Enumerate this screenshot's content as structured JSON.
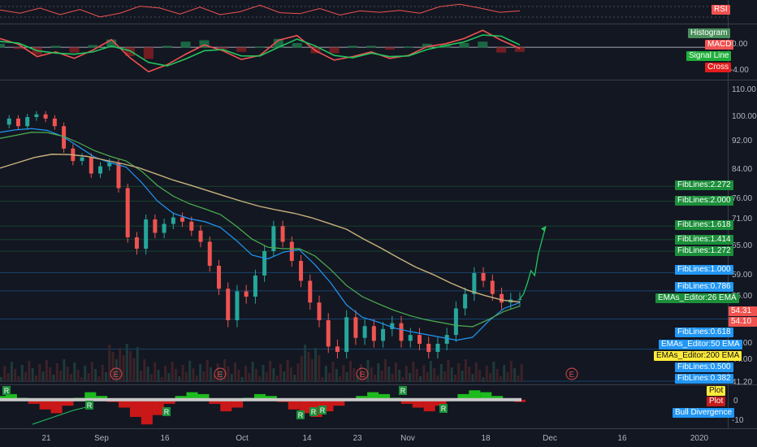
{
  "colors": {
    "background": "#131722",
    "up": "#26a69a",
    "down": "#ef5350",
    "ema26": "#2196f3",
    "ema50": "#4caf50",
    "ema200": "#c9b27c",
    "fib_blue": "#2196f3",
    "fib_green": "#1b8f3a",
    "rsi": "#ef5350",
    "macd": "#ef5350",
    "signal": "#22c55e",
    "projection": "#22c55e"
  },
  "x_axis": {
    "labels": [
      "21",
      "Sep",
      "16",
      "Oct",
      "14",
      "23",
      "Nov",
      "18",
      "Dec",
      "16",
      "2020"
    ]
  },
  "chart_data": [
    {
      "type": "line",
      "panel": "rsi",
      "series": [
        {
          "name": "RSI",
          "values": [
            54,
            47,
            58,
            44,
            55,
            39,
            47,
            62,
            58,
            45,
            60,
            44,
            50,
            64,
            48,
            46,
            57,
            43,
            52,
            49,
            53,
            47,
            61,
            66,
            58,
            49,
            52
          ]
        }
      ],
      "legend": [
        "RSI"
      ]
    },
    {
      "type": "line",
      "panel": "macd",
      "y_ticks": [
        "0.00",
        "-4.00"
      ],
      "ylim": [
        -5.0,
        3.5
      ],
      "series": [
        {
          "name": "MACD",
          "values": [
            1.5,
            0.5,
            -1.6,
            -0.8,
            -1.9,
            -0.5,
            1.3,
            -1.8,
            -4.2,
            -3.0,
            -1.2,
            0.4,
            -0.6,
            -2.1,
            -1.4,
            1.2,
            2.0,
            -0.6,
            -2.2,
            -1.6,
            -0.8,
            -1.9,
            -1.4,
            0.1,
            0.6,
            1.5,
            2.9,
            1.2,
            -0.2
          ]
        },
        {
          "name": "Signal Line",
          "values": [
            1.0,
            0.7,
            -0.6,
            -1.0,
            -1.2,
            -0.8,
            0.2,
            -0.6,
            -2.6,
            -3.2,
            -2.0,
            -0.6,
            -0.4,
            -1.5,
            -1.5,
            0.0,
            1.4,
            0.2,
            -1.4,
            -1.8,
            -1.0,
            -1.6,
            -1.5,
            -0.4,
            0.3,
            0.9,
            2.1,
            1.9,
            0.4
          ]
        }
      ],
      "legend": [
        "Histogram",
        "MACD",
        "Signal Line",
        "Cross"
      ]
    },
    {
      "type": "line",
      "panel": "price",
      "y_ticks": [
        "110.00",
        "100.00",
        "92.00",
        "84.00",
        "76.00",
        "71.00",
        "65.00",
        "59.00",
        "55.00",
        "47.00",
        "44.00",
        "41.20"
      ],
      "series": [
        {
          "name": "Price",
          "values": [
            97.5,
            99.5,
            97.0,
            100.0,
            101.0,
            99.5,
            97.0,
            90.0,
            86.5,
            87.5,
            83.0,
            85.0,
            86.0,
            79.0,
            67.0,
            64.5,
            71.0,
            68.0,
            70.0,
            71.5,
            70.5,
            68.5,
            66.0,
            61.0,
            56.5,
            51.0,
            56.0,
            55.0,
            59.0,
            64.0,
            69.5,
            66.0,
            62.0,
            58.0,
            54.0,
            51.0,
            46.5,
            45.5,
            51.5,
            48.0,
            50.0,
            47.5,
            49.5,
            50.5,
            47.5,
            48.5,
            47.0,
            45.5,
            47.0,
            48.5,
            53.0,
            55.5,
            59.5,
            58.0,
            55.5,
            54.0,
            54.5,
            54.6
          ]
        },
        {
          "name": "EMAs_Editor:26 EMA",
          "values": [
            95,
            95.8,
            96.2,
            95.6,
            93.6,
            90.5,
            87.6,
            86,
            84.8,
            80.5,
            75.5,
            72.5,
            71.2,
            70.5,
            69.2,
            66.3,
            63.2,
            62.4,
            63.8,
            64.3,
            61.2,
            57.6,
            53.6,
            51.5,
            50.7,
            49.7,
            49.1,
            48.6,
            48.1,
            47.6,
            48.1,
            50.8,
            53,
            54
          ]
        },
        {
          "name": "EMAs_Editor:50 EMA",
          "values": [
            93,
            94,
            95,
            94.9,
            93.7,
            91.6,
            89.4,
            87.8,
            86.5,
            83.6,
            79.7,
            76.8,
            74.9,
            73.6,
            72.2,
            69.5,
            66.6,
            64.8,
            64.5,
            64.5,
            63,
            60.2,
            57.1,
            55,
            53.8,
            52.7,
            51.8,
            51.1,
            50.6,
            50.1,
            49.9,
            51.1,
            52.5,
            53.4
          ]
        },
        {
          "name": "EMAs_Editor:200 EMA",
          "values": [
            84.5,
            86,
            87.5,
            88.4,
            88.3,
            87.8,
            86.8,
            85.8,
            84.6,
            82.9,
            81.2,
            79.8,
            78.3,
            76.8,
            75.4,
            74.2,
            73.3,
            72.5,
            71.4,
            70.1,
            68.8,
            66.6,
            64.6,
            62.6,
            60.7,
            59.2,
            57.6,
            56.2,
            55.2,
            54.4,
            54.1
          ]
        }
      ],
      "projection": {
        "values": [
          54.6,
          55.5,
          57.5,
          60.0,
          59.0,
          63.5,
          66.5,
          69.5
        ]
      },
      "price_labels": [
        "54.31",
        "54.10"
      ],
      "fib_lines": [
        {
          "label": "FibLines:2.272",
          "value": 79.5,
          "color": "#1b8f3a"
        },
        {
          "label": "FibLines:2.000",
          "value": 75.5,
          "color": "#1b8f3a"
        },
        {
          "label": "FibLines:1.618",
          "value": 69.5,
          "color": "#1b8f3a"
        },
        {
          "label": "FibLines:1.414",
          "value": 66.5,
          "color": "#1b8f3a"
        },
        {
          "label": "FibLines:1.272",
          "value": 64.0,
          "color": "#1b8f3a"
        },
        {
          "label": "FibLines:1.000",
          "value": 59.6,
          "color": "#2196f3"
        },
        {
          "label": "FibLines:0.786",
          "value": 56.1,
          "color": "#2196f3"
        },
        {
          "label": "FibLines:0.618",
          "value": 51.2,
          "color": "#2196f3"
        },
        {
          "label": "FibLines:0.500",
          "value": 46.0,
          "color": "#2196f3"
        },
        {
          "label": "FibLines:0.382",
          "value": 41.4,
          "color": "#2196f3"
        }
      ],
      "ema_labels": [
        {
          "label": "EMAs_Editor:26 EMA",
          "color": "#1b8f3a"
        },
        {
          "label": "EMAs_Editor:50 EMA",
          "color": "#2196f3"
        },
        {
          "label": "EMAs_Editor:200 EMA",
          "color": "#ffeb3b"
        }
      ],
      "event_markers": [
        "E",
        "E",
        "E",
        "E"
      ]
    },
    {
      "type": "area",
      "panel": "oscillator",
      "y_ticks": [
        "0",
        "-10"
      ],
      "series": [
        {
          "name": "Plot",
          "values": [
            2,
            3,
            1,
            -2,
            -5,
            -7,
            -3,
            1,
            4,
            2,
            -1,
            -4,
            -9,
            -13,
            -8,
            -2,
            2,
            4,
            3,
            -2,
            -6,
            -4,
            1,
            3,
            2,
            -1,
            -5,
            -7,
            -9,
            -6,
            -3,
            0,
            2,
            4,
            3,
            1,
            -2,
            -4,
            -6,
            -3,
            0,
            3,
            5,
            4,
            2,
            0,
            -1
          ]
        }
      ],
      "markers": [
        "R",
        "R",
        "R",
        "R",
        "R",
        "R",
        "R",
        "R"
      ],
      "legend": [
        "Plot",
        "Plot",
        "Bull Divergence"
      ]
    }
  ]
}
